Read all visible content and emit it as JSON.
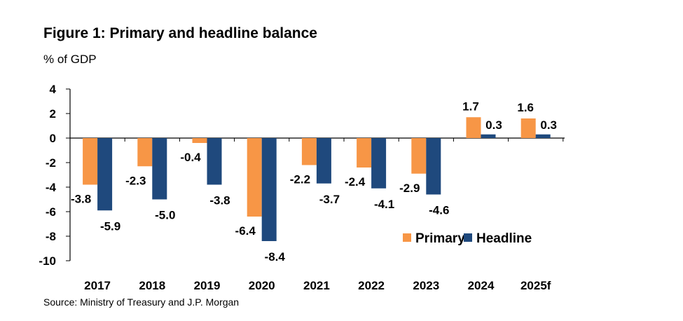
{
  "title": "Figure 1: Primary and headline balance",
  "subtitle": "% of GDP",
  "source": "Source: Ministry of Treasury and J.P. Morgan",
  "colors": {
    "primary": "#F79646",
    "headline": "#1F497D"
  },
  "chart_data": {
    "type": "bar",
    "categories": [
      "2017",
      "2018",
      "2019",
      "2020",
      "2021",
      "2022",
      "2023",
      "2024",
      "2025f"
    ],
    "series": [
      {
        "name": "Primary",
        "values": [
          -3.8,
          -2.3,
          -0.4,
          -6.4,
          -2.2,
          -2.4,
          -2.9,
          1.7,
          1.6
        ]
      },
      {
        "name": "Headline",
        "values": [
          -5.9,
          -5.0,
          -3.8,
          -8.4,
          -3.7,
          -4.1,
          -4.6,
          0.3,
          0.3
        ]
      }
    ],
    "ylim": [
      -10,
      4
    ],
    "yticks": [
      4,
      2,
      0,
      -2,
      -4,
      -6,
      -8,
      -10
    ],
    "ytick_labels": [
      "4",
      "2",
      "0",
      "-2",
      "-4",
      "-6",
      "-8",
      "-10"
    ],
    "data_labels": {
      "Primary": [
        "-3.8",
        "-2.3",
        "-0.4",
        "-6.4",
        "-2.2",
        "-2.4",
        "-2.9",
        "1.7",
        "1.6"
      ],
      "Headline": [
        "-5.9",
        "-5.0",
        "-3.8",
        "-8.4",
        "-3.7",
        "-4.1",
        "-4.6",
        "0.3",
        "0.3"
      ]
    },
    "legend": {
      "position": "bottom-right",
      "entries": [
        "Primary",
        "Headline"
      ]
    },
    "grid": false,
    "xlabel": "",
    "ylabel": ""
  }
}
